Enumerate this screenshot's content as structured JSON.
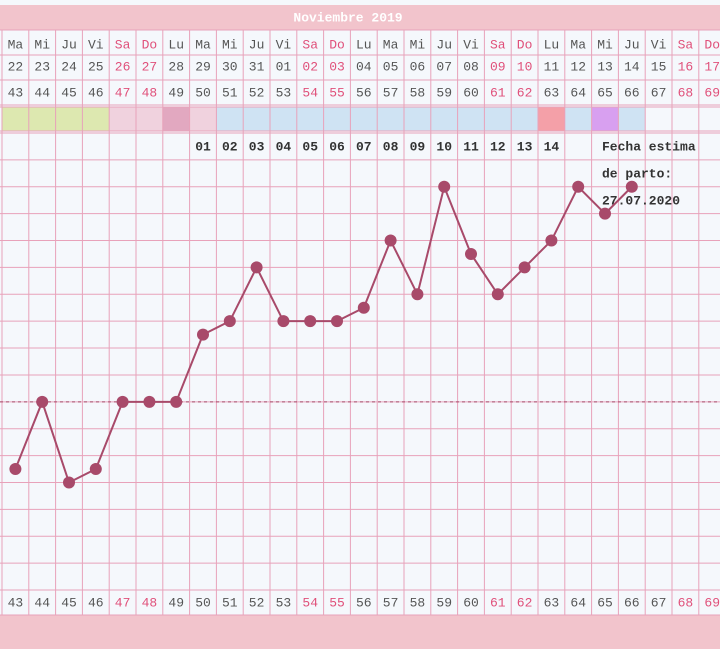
{
  "chart_data": {
    "type": "line",
    "title": "Noviembre 2019",
    "weekdays": [
      "Ma",
      "Mi",
      "Ju",
      "Vi",
      "Sa",
      "Do",
      "Lu",
      "Ma",
      "Mi",
      "Ju",
      "Vi",
      "Sa",
      "Do",
      "Lu",
      "Ma",
      "Mi",
      "Ju",
      "Vi",
      "Sa",
      "Do",
      "Lu",
      "Ma",
      "Mi",
      "Ju",
      "Vi",
      "Sa",
      "Do"
    ],
    "categories": [
      "22",
      "23",
      "24",
      "25",
      "26",
      "27",
      "28",
      "29",
      "30",
      "31",
      "01",
      "02",
      "03",
      "04",
      "05",
      "06",
      "07",
      "08",
      "09",
      "10",
      "11",
      "12",
      "13",
      "14",
      "15",
      "16",
      "17"
    ],
    "cycle_days": [
      43,
      44,
      45,
      46,
      47,
      48,
      49,
      50,
      51,
      52,
      53,
      54,
      55,
      56,
      57,
      58,
      59,
      60,
      61,
      62,
      63,
      64,
      65,
      66,
      67,
      68,
      69
    ],
    "label_colors": [
      "#555",
      "#555",
      "#555",
      "#555",
      "#e0507a",
      "#e0507a",
      "#555",
      "#555",
      "#555",
      "#555",
      "#555",
      "#e0507a",
      "#e0507a",
      "#555",
      "#555",
      "#555",
      "#555",
      "#555",
      "#e0507a",
      "#e0507a",
      "#555",
      "#555",
      "#555",
      "#555",
      "#555",
      "#e0507a",
      "#e0507a"
    ],
    "band_colors": [
      "#dde8b0",
      "#dde8b0",
      "#dde8b0",
      "#dde8b0",
      "#f0d2de",
      "#f0d2de",
      "#e2a8c0",
      "#f0d2de",
      "#cfe3f3",
      "#cfe3f3",
      "#cfe3f3",
      "#cfe3f3",
      "#cfe3f3",
      "#cfe3f3",
      "#cfe3f3",
      "#cfe3f3",
      "#cfe3f3",
      "#cfe3f3",
      "#cfe3f3",
      "#cfe3f3",
      "#f4a0a8",
      "#cfe3f3",
      "#d8a0f0",
      "#cfe3f3",
      null,
      null,
      null
    ],
    "dpo": [
      null,
      null,
      null,
      null,
      null,
      null,
      null,
      "01",
      "02",
      "03",
      "04",
      "05",
      "06",
      "07",
      "08",
      "09",
      "10",
      "11",
      "12",
      "13",
      "14",
      null,
      null,
      null,
      null,
      null,
      null
    ],
    "values": [
      4.5,
      7,
      4,
      4.5,
      7,
      7,
      7,
      9.5,
      10,
      12,
      10,
      10,
      10,
      10.5,
      13,
      11,
      15,
      12.5,
      11,
      12,
      13,
      15,
      14,
      15,
      null,
      null,
      null
    ],
    "color": "#a84a6a",
    "ylim": [
      0,
      17
    ],
    "coverline": 7,
    "grid": true,
    "note": [
      "Fecha estima",
      "de parto:",
      "27.07.2020"
    ]
  }
}
